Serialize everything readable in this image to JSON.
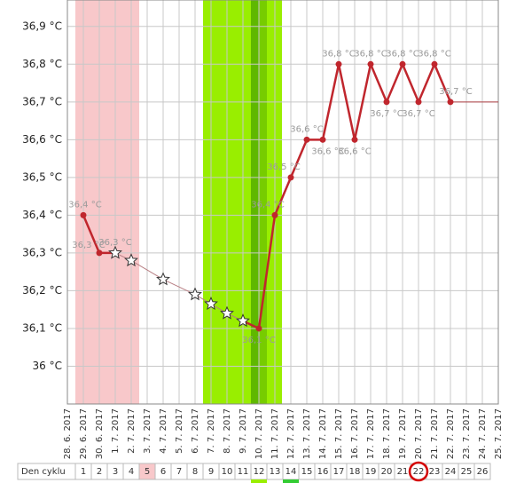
{
  "chart_data": {
    "type": "temperature",
    "dates": [
      "28. 6. 2017",
      "29. 6. 2017",
      "30. 6. 2017",
      "1. 7. 2017",
      "2. 7. 2017",
      "3. 7. 2017",
      "4. 7. 2017",
      "5. 7. 2017",
      "6. 7. 2017",
      "7. 7. 2017",
      "8. 7. 2017",
      "9. 7. 2017",
      "10. 7. 2017",
      "11. 7. 2017",
      "12. 7. 2017",
      "13. 7. 2017",
      "14. 7. 2017",
      "15. 7. 2017",
      "16. 7. 2017",
      "17. 7. 2017",
      "18. 7. 2017",
      "19. 7. 2017",
      "20. 7. 2017",
      "21. 7. 2017",
      "22. 7. 2017",
      "23. 7. 2017",
      "24. 7. 2017",
      "25. 7. 2017"
    ],
    "measured": {
      "color": "#c0262d",
      "values": [
        null,
        36.4,
        36.3,
        null,
        null,
        null,
        null,
        null,
        null,
        null,
        null,
        null,
        36.1,
        36.4,
        36.5,
        36.6,
        36.6,
        36.8,
        36.6,
        36.8,
        36.7,
        36.8,
        36.7,
        36.8,
        36.7,
        null,
        null,
        null
      ],
      "value_labels": [
        null,
        "36,4 °C",
        "36,3 °C",
        null,
        null,
        null,
        null,
        null,
        null,
        null,
        null,
        null,
        "36,1 °C",
        "36,4 °C",
        "36,5 °C",
        "36,6 °C",
        "36,6 °C",
        "36,8 °C",
        "36,6 °C",
        "36,8 °C",
        "36,7 °C",
        "36,8 °C",
        "36,7 °C",
        "36,8 °C",
        "36,7 °C",
        null,
        null,
        null
      ]
    },
    "interpolated": {
      "color": "#ffffff",
      "values": [
        null,
        null,
        null,
        36.3,
        36.28,
        null,
        36.23,
        null,
        36.19,
        36.165,
        36.14,
        36.12,
        null,
        null,
        null,
        null,
        null,
        null,
        null,
        null,
        null,
        null,
        null,
        null,
        null,
        null,
        null,
        null
      ],
      "value_labels": [
        null,
        null,
        null,
        "36,3 °C",
        null,
        null,
        null,
        null,
        null,
        null,
        null,
        null,
        null,
        null,
        null,
        null,
        null,
        null,
        null,
        null,
        null,
        null,
        null,
        null,
        null,
        null,
        null,
        null
      ]
    },
    "tail": {
      "color": "#b04045",
      "values": [
        null,
        null,
        null,
        null,
        null,
        null,
        null,
        null,
        null,
        null,
        null,
        null,
        null,
        null,
        null,
        null,
        null,
        null,
        null,
        null,
        null,
        null,
        null,
        null,
        36.7,
        36.7,
        36.7,
        36.7
      ]
    },
    "ylim": [
      35.9,
      36.97
    ],
    "yticks": [
      {
        "value": 36,
        "label": "36 °C"
      },
      {
        "value": 36.1,
        "label": "36,1 °C"
      },
      {
        "value": 36.2,
        "label": "36,2 °C"
      },
      {
        "value": 36.3,
        "label": "36,3 °C"
      },
      {
        "value": 36.4,
        "label": "36,4 °C"
      },
      {
        "value": 36.5,
        "label": "36,5 °C"
      },
      {
        "value": 36.6,
        "label": "36,6 °C"
      },
      {
        "value": 36.7,
        "label": "36,7 °C"
      },
      {
        "value": 36.8,
        "label": "36,8 °C"
      },
      {
        "value": 36.9,
        "label": "36,9 °C"
      }
    ],
    "grid": true,
    "cycle_row": {
      "label": "Den cyklu",
      "days": [
        1,
        2,
        3,
        4,
        5,
        6,
        7,
        8,
        9,
        10,
        11,
        12,
        13,
        14,
        15,
        16,
        17,
        18,
        19,
        20,
        21,
        22,
        23,
        24,
        25,
        26
      ]
    }
  }
}
